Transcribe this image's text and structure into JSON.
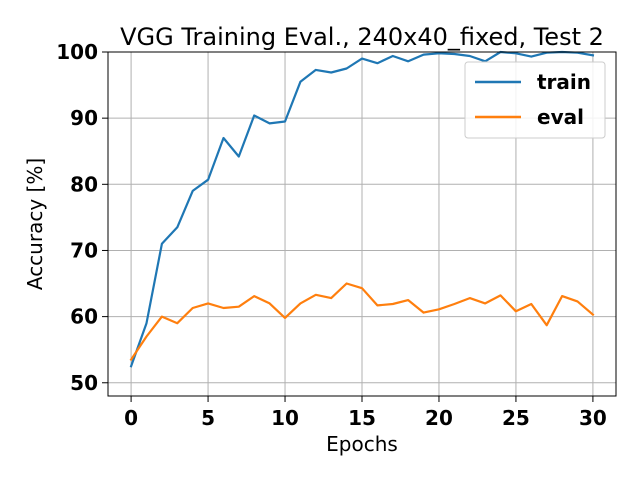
{
  "chart_data": {
    "type": "line",
    "title": "VGG Training Eval., 240x40_fixed, Test 2",
    "xlabel": "Epochs",
    "ylabel": "Accuracy [%]",
    "xlim": [
      -1.5,
      31.5
    ],
    "ylim": [
      48,
      100
    ],
    "xticks": [
      0,
      5,
      10,
      15,
      20,
      25,
      30
    ],
    "yticks": [
      50,
      60,
      70,
      80,
      90,
      100
    ],
    "grid": true,
    "legend_position": "top-right",
    "x": [
      0,
      1,
      2,
      3,
      4,
      5,
      6,
      7,
      8,
      9,
      10,
      11,
      12,
      13,
      14,
      15,
      16,
      17,
      18,
      19,
      20,
      21,
      22,
      23,
      24,
      25,
      26,
      27,
      28,
      29,
      30
    ],
    "series": [
      {
        "name": "train",
        "color": "#1f77b4",
        "values": [
          52.5,
          59.0,
          71.0,
          73.5,
          79.0,
          80.7,
          87.0,
          84.2,
          90.4,
          89.2,
          89.5,
          95.5,
          97.3,
          96.9,
          97.5,
          99.0,
          98.3,
          99.4,
          98.6,
          99.6,
          99.8,
          99.7,
          99.4,
          98.6,
          100.0,
          99.8,
          99.3,
          99.9,
          100.0,
          99.9,
          99.5
        ]
      },
      {
        "name": "eval",
        "color": "#ff7f0e",
        "values": [
          53.5,
          57.0,
          60.0,
          59.0,
          61.3,
          62.0,
          61.3,
          61.5,
          63.1,
          62.0,
          59.8,
          62.0,
          63.3,
          62.8,
          65.0,
          64.3,
          61.7,
          61.9,
          62.5,
          60.6,
          61.1,
          61.9,
          62.8,
          62.0,
          63.2,
          60.8,
          61.9,
          58.7,
          63.1,
          62.3,
          60.3
        ]
      }
    ]
  }
}
